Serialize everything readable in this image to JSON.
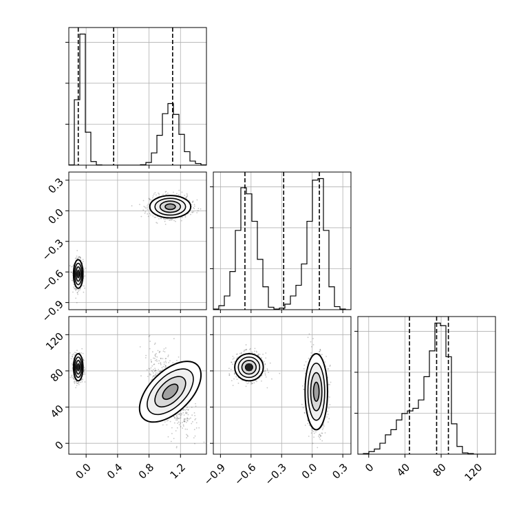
{
  "chart_data": {
    "type": "corner",
    "parameters": [
      "",
      "",
      ""
    ],
    "grid": true,
    "colors": {
      "contour": "#000000",
      "points": "#333333",
      "grid": "#b0b0b0"
    },
    "ranges": [
      [
        -0.22,
        1.53
      ],
      [
        -0.97,
        0.38
      ],
      [
        -12,
        140
      ]
    ],
    "ticks": [
      {
        "values": [
          0.0,
          0.4,
          0.8,
          1.2
        ],
        "labels": [
          "0.0",
          "0.4",
          "0.8",
          "1.2"
        ]
      },
      {
        "values": [
          -0.9,
          -0.6,
          -0.3,
          0.0,
          0.3
        ],
        "labels": [
          "−0.9",
          "−0.6",
          "−0.3",
          "0.0",
          "0.3"
        ]
      },
      {
        "values": [
          0,
          40,
          80,
          120
        ],
        "labels": [
          "0",
          "40",
          "80",
          "120"
        ]
      }
    ],
    "histograms": [
      {
        "edges": [
          -0.22,
          -0.15,
          -0.08,
          -0.01,
          0.06,
          0.13,
          0.2,
          0.27,
          0.34,
          0.41,
          0.48,
          0.55,
          0.62,
          0.69,
          0.76,
          0.83,
          0.9,
          0.97,
          1.04,
          1.11,
          1.18,
          1.25,
          1.32,
          1.39,
          1.46,
          1.53
        ],
        "counts": [
          1,
          272,
          545,
          137,
          15,
          1,
          0,
          0,
          0,
          0,
          0,
          0,
          0,
          2,
          11,
          51,
          124,
          214,
          256,
          211,
          128,
          56,
          17,
          7,
          1
        ],
        "quantiles": [
          -0.1,
          0.35,
          1.1
        ]
      },
      {
        "edges": [
          -0.97,
          -0.916,
          -0.862,
          -0.808,
          -0.754,
          -0.7,
          -0.646,
          -0.592,
          -0.538,
          -0.484,
          -0.43,
          -0.376,
          -0.322,
          -0.268,
          -0.214,
          -0.16,
          -0.106,
          -0.052,
          0.002,
          0.056,
          0.11,
          0.164,
          0.218,
          0.272,
          0.326,
          0.38
        ],
        "counts": [
          2,
          13,
          45,
          125,
          260,
          400,
          380,
          290,
          165,
          75,
          8,
          2,
          5,
          18,
          45,
          80,
          150,
          290,
          425,
          430,
          260,
          75,
          10,
          2,
          0
        ],
        "quantiles": [
          -0.66,
          -0.28,
          0.07
        ]
      },
      {
        "edges": [
          -12,
          -5.92,
          0.16,
          6.24,
          12.32,
          18.4,
          24.48,
          30.56,
          36.64,
          42.72,
          48.8,
          54.88,
          60.96,
          67.04,
          73.12,
          79.2,
          85.28,
          91.36,
          97.44,
          103.52,
          109.6,
          115.68,
          121.76,
          127.84,
          133.92,
          140
        ],
        "counts": [
          0,
          5,
          20,
          40,
          85,
          150,
          190,
          265,
          315,
          335,
          355,
          420,
          600,
          800,
          1015,
          995,
          755,
          235,
          60,
          10,
          5,
          0,
          0,
          0,
          0
        ],
        "quantiles": [
          45,
          75,
          88
        ]
      }
    ],
    "clusters": [
      {
        "center": [
          -0.1,
          -0.62,
          84
        ],
        "sd": [
          0.03,
          0.07,
          7.5
        ]
      },
      {
        "center": [
          1.07,
          0.04,
          57
        ],
        "sd": [
          0.13,
          0.055,
          21
        ]
      }
    ]
  }
}
